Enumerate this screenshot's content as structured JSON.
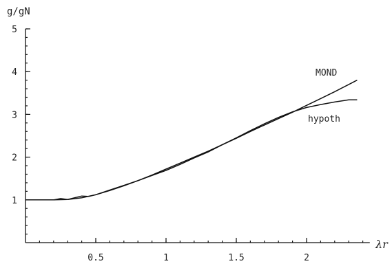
{
  "chart_data": {
    "type": "line",
    "ylabel": "g/gN",
    "xlabel": "λr",
    "xlim": [
      0,
      2.45
    ],
    "ylim": [
      0,
      5
    ],
    "x_ticks": [
      {
        "value": 0.5,
        "label": "0.5"
      },
      {
        "value": 1,
        "label": "1"
      },
      {
        "value": 1.5,
        "label": "1.5"
      },
      {
        "value": 2,
        "label": "2"
      }
    ],
    "y_ticks": [
      {
        "value": 1,
        "label": "1"
      },
      {
        "value": 2,
        "label": "2"
      },
      {
        "value": 3,
        "label": "3"
      },
      {
        "value": 4,
        "label": "4"
      },
      {
        "value": 5,
        "label": "5"
      }
    ],
    "x_minor_step": 0.1,
    "y_minor_step": 0.2,
    "grid": false,
    "series": [
      {
        "name": "MOND",
        "x": [
          0.0,
          0.2,
          0.3,
          0.4,
          0.5,
          0.6,
          0.7,
          0.8,
          0.9,
          1.0,
          1.1,
          1.2,
          1.3,
          1.4,
          1.5,
          1.6,
          1.7,
          1.8,
          1.9,
          2.0,
          2.1,
          2.2,
          2.3,
          2.36
        ],
        "y": [
          1.0,
          1.0,
          1.01,
          1.05,
          1.12,
          1.22,
          1.33,
          1.45,
          1.58,
          1.72,
          1.86,
          2.0,
          2.14,
          2.29,
          2.44,
          2.6,
          2.75,
          2.9,
          3.05,
          3.21,
          3.37,
          3.53,
          3.7,
          3.8
        ]
      },
      {
        "name": "hypoth",
        "x": [
          0.0,
          0.2,
          0.25,
          0.3,
          0.35,
          0.4,
          0.45,
          0.5,
          0.6,
          0.7,
          0.8,
          0.9,
          1.0,
          1.1,
          1.2,
          1.3,
          1.4,
          1.5,
          1.6,
          1.7,
          1.8,
          1.9,
          2.0,
          2.1,
          2.2,
          2.3,
          2.36
        ],
        "y": [
          1.0,
          1.0,
          1.03,
          1.01,
          1.05,
          1.09,
          1.08,
          1.12,
          1.23,
          1.34,
          1.45,
          1.57,
          1.69,
          1.83,
          1.98,
          2.12,
          2.29,
          2.45,
          2.62,
          2.78,
          2.93,
          3.06,
          3.16,
          3.23,
          3.29,
          3.34,
          3.34
        ]
      }
    ]
  }
}
